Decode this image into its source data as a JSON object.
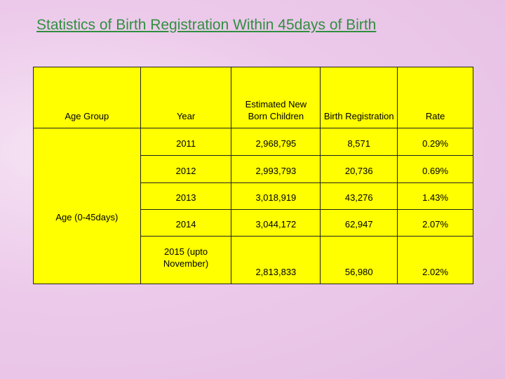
{
  "title": "Statistics of Birth Registration Within 45days of Birth",
  "table": {
    "headers": [
      "Age Group",
      "Year",
      "Estimated New Born Children",
      "Birth Registration",
      "Rate"
    ],
    "age_group": "Age (0-45days)",
    "rows": [
      [
        "2011",
        "2,968,795",
        "8,571",
        "0.29%"
      ],
      [
        "2012",
        "2,993,793",
        "20,736",
        "0.69%"
      ],
      [
        "2013",
        "3,018,919",
        "43,276",
        "1.43%"
      ],
      [
        "2014",
        "3,044,172",
        "62,947",
        "2.07%"
      ],
      [
        "2015 (upto November)",
        "2,813,833",
        "56,980",
        "2.02%"
      ]
    ]
  }
}
